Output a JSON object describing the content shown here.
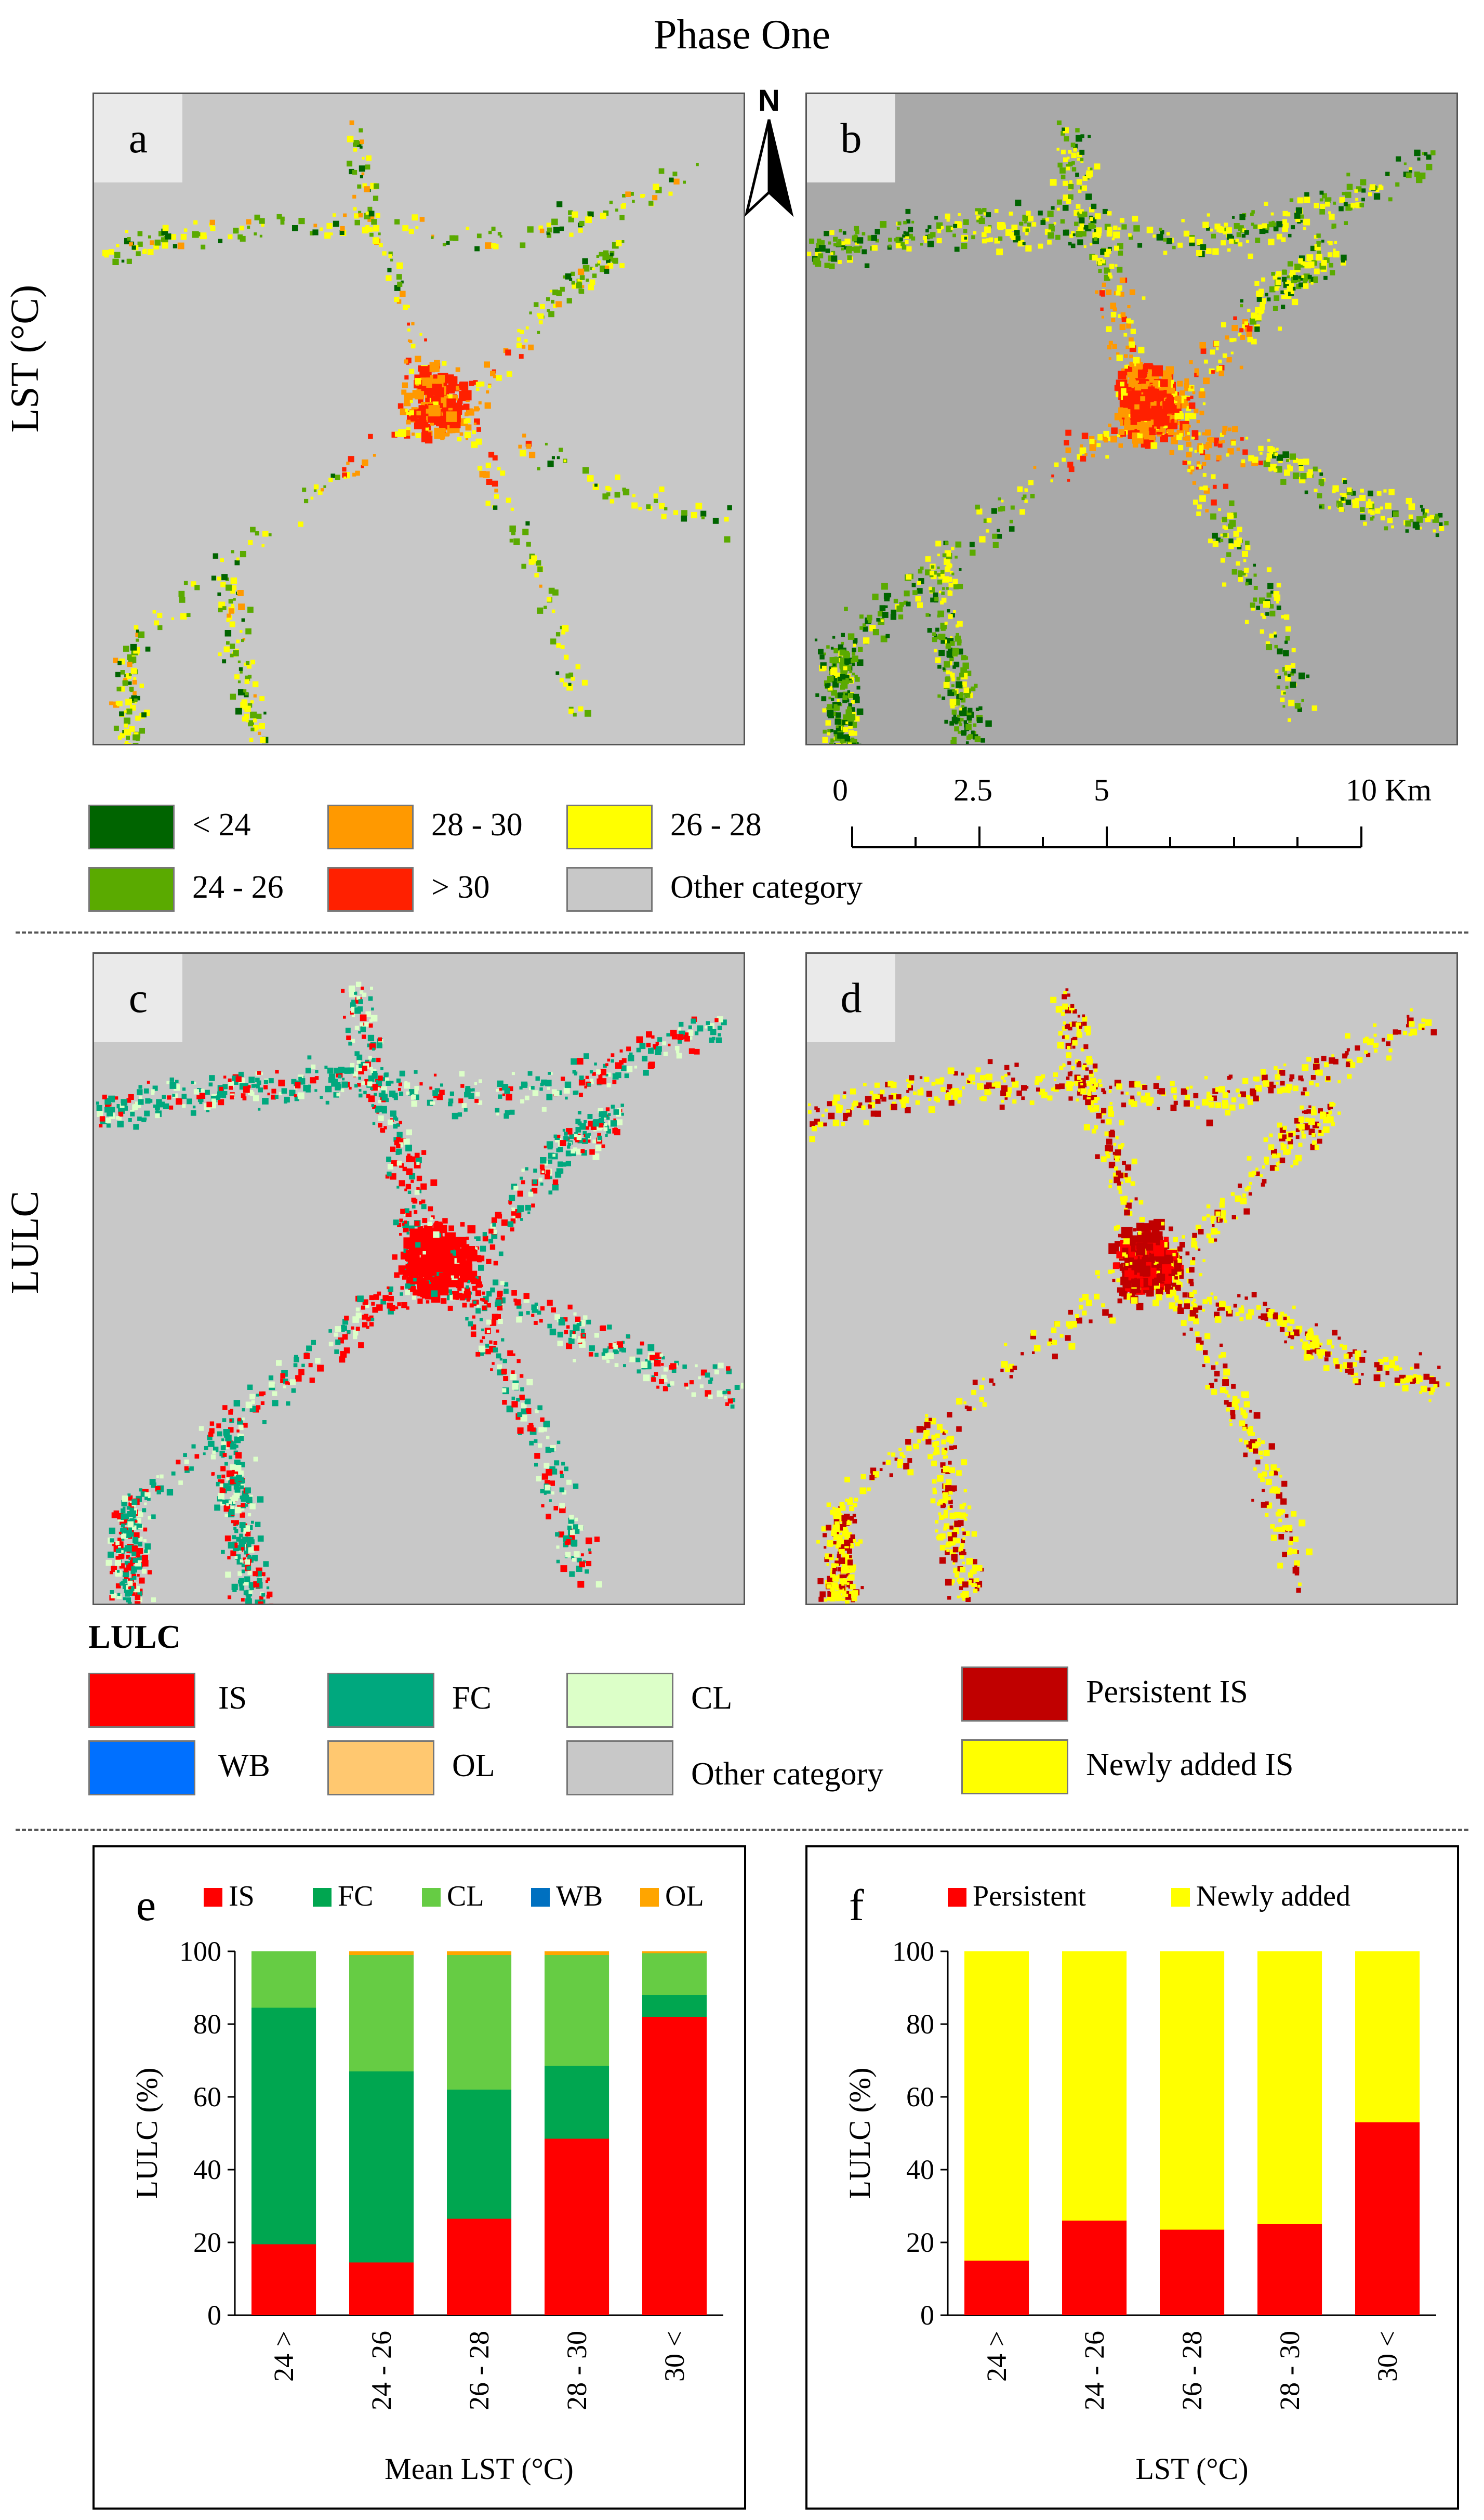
{
  "figure": {
    "title": "Phase One",
    "row_labels": {
      "lst": "LST (°C)",
      "lulc": "LULC"
    },
    "panels": [
      "a",
      "b",
      "c",
      "d",
      "e",
      "f"
    ]
  },
  "compass": {
    "label": "N"
  },
  "colors": {
    "lst_lt24": "#006400",
    "lst_24_26": "#5aaa00",
    "lst_26_28": "#ffff00",
    "lst_28_30": "#ff9900",
    "lst_gt30": "#ff2000",
    "other": "#c8c8c8",
    "is": "#ff0000",
    "fc": "#00a87e",
    "cl": "#dcffc8",
    "wb": "#0070ff",
    "ol": "#ffc870",
    "persistent": "#c00000",
    "newly": "#ffff00",
    "chart_fc": "#00a650",
    "chart_cl": "#66cc44",
    "chart_wb": "#0070c0",
    "chart_ol": "#ffa500"
  },
  "lst_legend": {
    "lt24": "< 24",
    "r24_26": "24 - 26",
    "r28_30": "28 - 30",
    "gt30": "> 30",
    "r26_28": "26 - 28",
    "other": "Other category"
  },
  "scale_bar": {
    "labels": [
      "0",
      "2.5",
      "5",
      "10 Km"
    ]
  },
  "lulc_legend": {
    "title": "LULC",
    "is": "IS",
    "fc": "FC",
    "cl": "CL",
    "wb": "WB",
    "ol": "OL",
    "other": "Other category",
    "persistent": "Persistent IS",
    "newly": "Newly added IS"
  },
  "chart_data": [
    {
      "panel": "e",
      "type": "bar",
      "stacked": true,
      "categories": [
        "24 >",
        "24 - 26",
        "26 - 28",
        "28 - 30",
        "30 <"
      ],
      "series": [
        {
          "name": "IS",
          "values": [
            19.5,
            14.5,
            26.5,
            48.5,
            82
          ]
        },
        {
          "name": "FC",
          "values": [
            65,
            52.5,
            35.5,
            20,
            6
          ]
        },
        {
          "name": "CL",
          "values": [
            15.5,
            32,
            37,
            30.5,
            11.5
          ]
        },
        {
          "name": "WB",
          "values": [
            0,
            0,
            0,
            0,
            0
          ]
        },
        {
          "name": "OL",
          "values": [
            0,
            1,
            1,
            1,
            0.5
          ]
        }
      ],
      "xlabel": "Mean LST (°C)",
      "ylabel": "LULC (%)",
      "ylim": [
        0,
        100
      ],
      "yticks": [
        0,
        20,
        40,
        60,
        80,
        100
      ],
      "legend": "top"
    },
    {
      "panel": "f",
      "type": "bar",
      "stacked": true,
      "categories": [
        "24 >",
        "24 - 26",
        "26 - 28",
        "28 - 30",
        "30 <"
      ],
      "series": [
        {
          "name": "Persistent",
          "values": [
            15,
            26,
            23.5,
            25,
            53
          ]
        },
        {
          "name": "Newly added",
          "values": [
            85,
            74,
            76.5,
            75,
            47
          ]
        }
      ],
      "xlabel": "LST (°C)",
      "ylabel": "LULC (%)",
      "ylim": [
        0,
        100
      ],
      "yticks": [
        0,
        20,
        40,
        60,
        80,
        100
      ],
      "legend": "top"
    }
  ]
}
